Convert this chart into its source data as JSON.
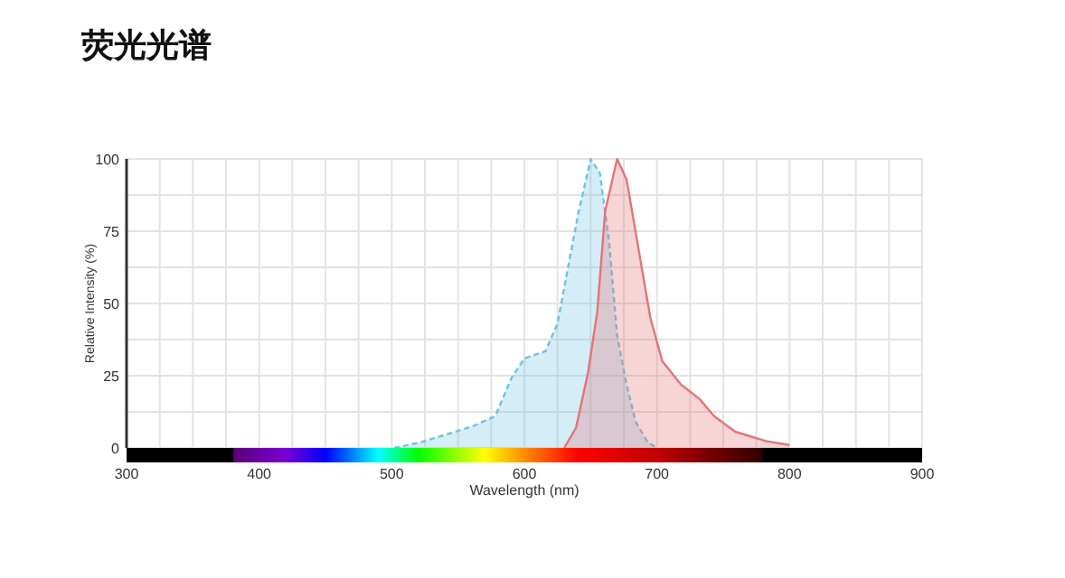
{
  "chart_data": {
    "type": "area",
    "title": "荧光光谱",
    "xlabel": "Wavelength (nm)",
    "ylabel": "Relative Intensity (%)",
    "xlim": [
      300,
      900
    ],
    "ylim": [
      0,
      100
    ],
    "xticks": [
      300,
      {
        "value": 325,
        "label": null
      },
      {
        "value": 350,
        "label": null
      },
      {
        "value": 375,
        "label": null
      },
      400,
      {
        "value": 425,
        "label": null
      },
      {
        "value": 450,
        "label": null
      },
      {
        "value": 475,
        "label": null
      },
      500,
      {
        "value": 525,
        "label": null
      },
      {
        "value": 550,
        "label": null
      },
      {
        "value": 575,
        "label": null
      },
      600,
      {
        "value": 625,
        "label": null
      },
      {
        "value": 650,
        "label": null
      },
      {
        "value": 675,
        "label": null
      },
      700,
      {
        "value": 725,
        "label": null
      },
      {
        "value": 750,
        "label": null
      },
      {
        "value": 775,
        "label": null
      },
      800,
      {
        "value": 825,
        "label": null
      },
      {
        "value": 850,
        "label": null
      },
      {
        "value": 875,
        "label": null
      },
      900
    ],
    "yticks": [
      0,
      {
        "value": 12.5,
        "label": null
      },
      25,
      {
        "value": 37.5,
        "label": null
      },
      50,
      {
        "value": 62.5,
        "label": null
      },
      75,
      {
        "value": 87.5,
        "label": null
      },
      100
    ],
    "grid": true,
    "series": [
      {
        "color": "#6fc3e0",
        "line_style": "dashed",
        "x": [
          502,
          522,
          561,
          578,
          590,
          600,
          616,
          625,
          634,
          641,
          650,
          657,
          664,
          670,
          677,
          684,
          693,
          700
        ],
        "values": [
          0,
          2,
          7.5,
          11,
          24,
          31,
          33.5,
          43,
          65,
          82,
          100,
          95,
          71,
          39,
          22,
          9,
          2,
          0
        ]
      },
      {
        "color": "#e57378",
        "line_style": "solid",
        "x": [
          630,
          639,
          648,
          655,
          661,
          670,
          677,
          686,
          695,
          704,
          718,
          732,
          743,
          759,
          782,
          800
        ],
        "values": [
          0,
          7,
          26,
          47,
          82,
          100,
          93,
          69,
          45,
          30,
          22,
          17,
          11,
          5.6,
          2.4,
          1
        ]
      }
    ]
  }
}
